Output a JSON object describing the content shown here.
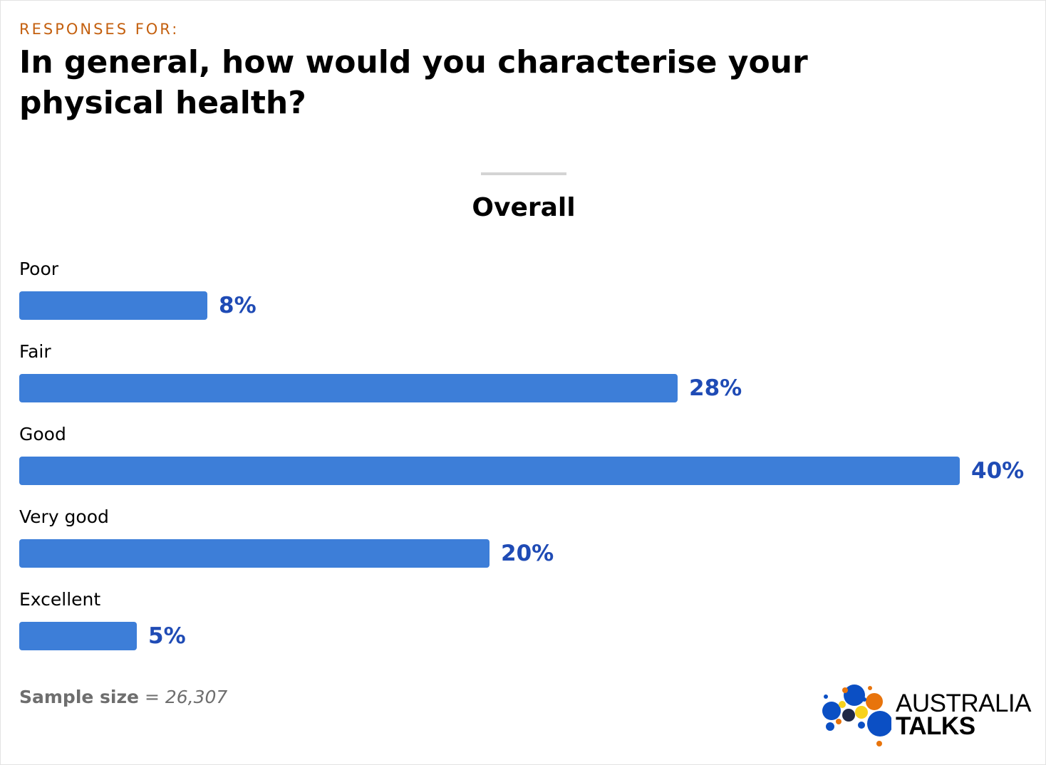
{
  "kicker": "RESPONSES FOR:",
  "title": "In general, how would you characterise your physical health?",
  "colors": {
    "bar": "#3d7ed8",
    "value_text": "#1f4bb5",
    "kicker": "#c4600f"
  },
  "chart_data": {
    "type": "bar",
    "orientation": "horizontal",
    "title": "Overall",
    "categories": [
      "Poor",
      "Fair",
      "Good",
      "Very good",
      "Excellent"
    ],
    "values": [
      8,
      28,
      40,
      20,
      5
    ],
    "value_labels": [
      "8%",
      "28%",
      "40%",
      "20%",
      "5%"
    ],
    "unit": "%",
    "xlim": [
      0,
      40
    ],
    "grid": false,
    "legend": "none"
  },
  "sample": {
    "label": "Sample size",
    "separator": " = ",
    "value": "26,307"
  },
  "logo": {
    "line1": "AUSTRALIA",
    "line2": "TALKS"
  }
}
